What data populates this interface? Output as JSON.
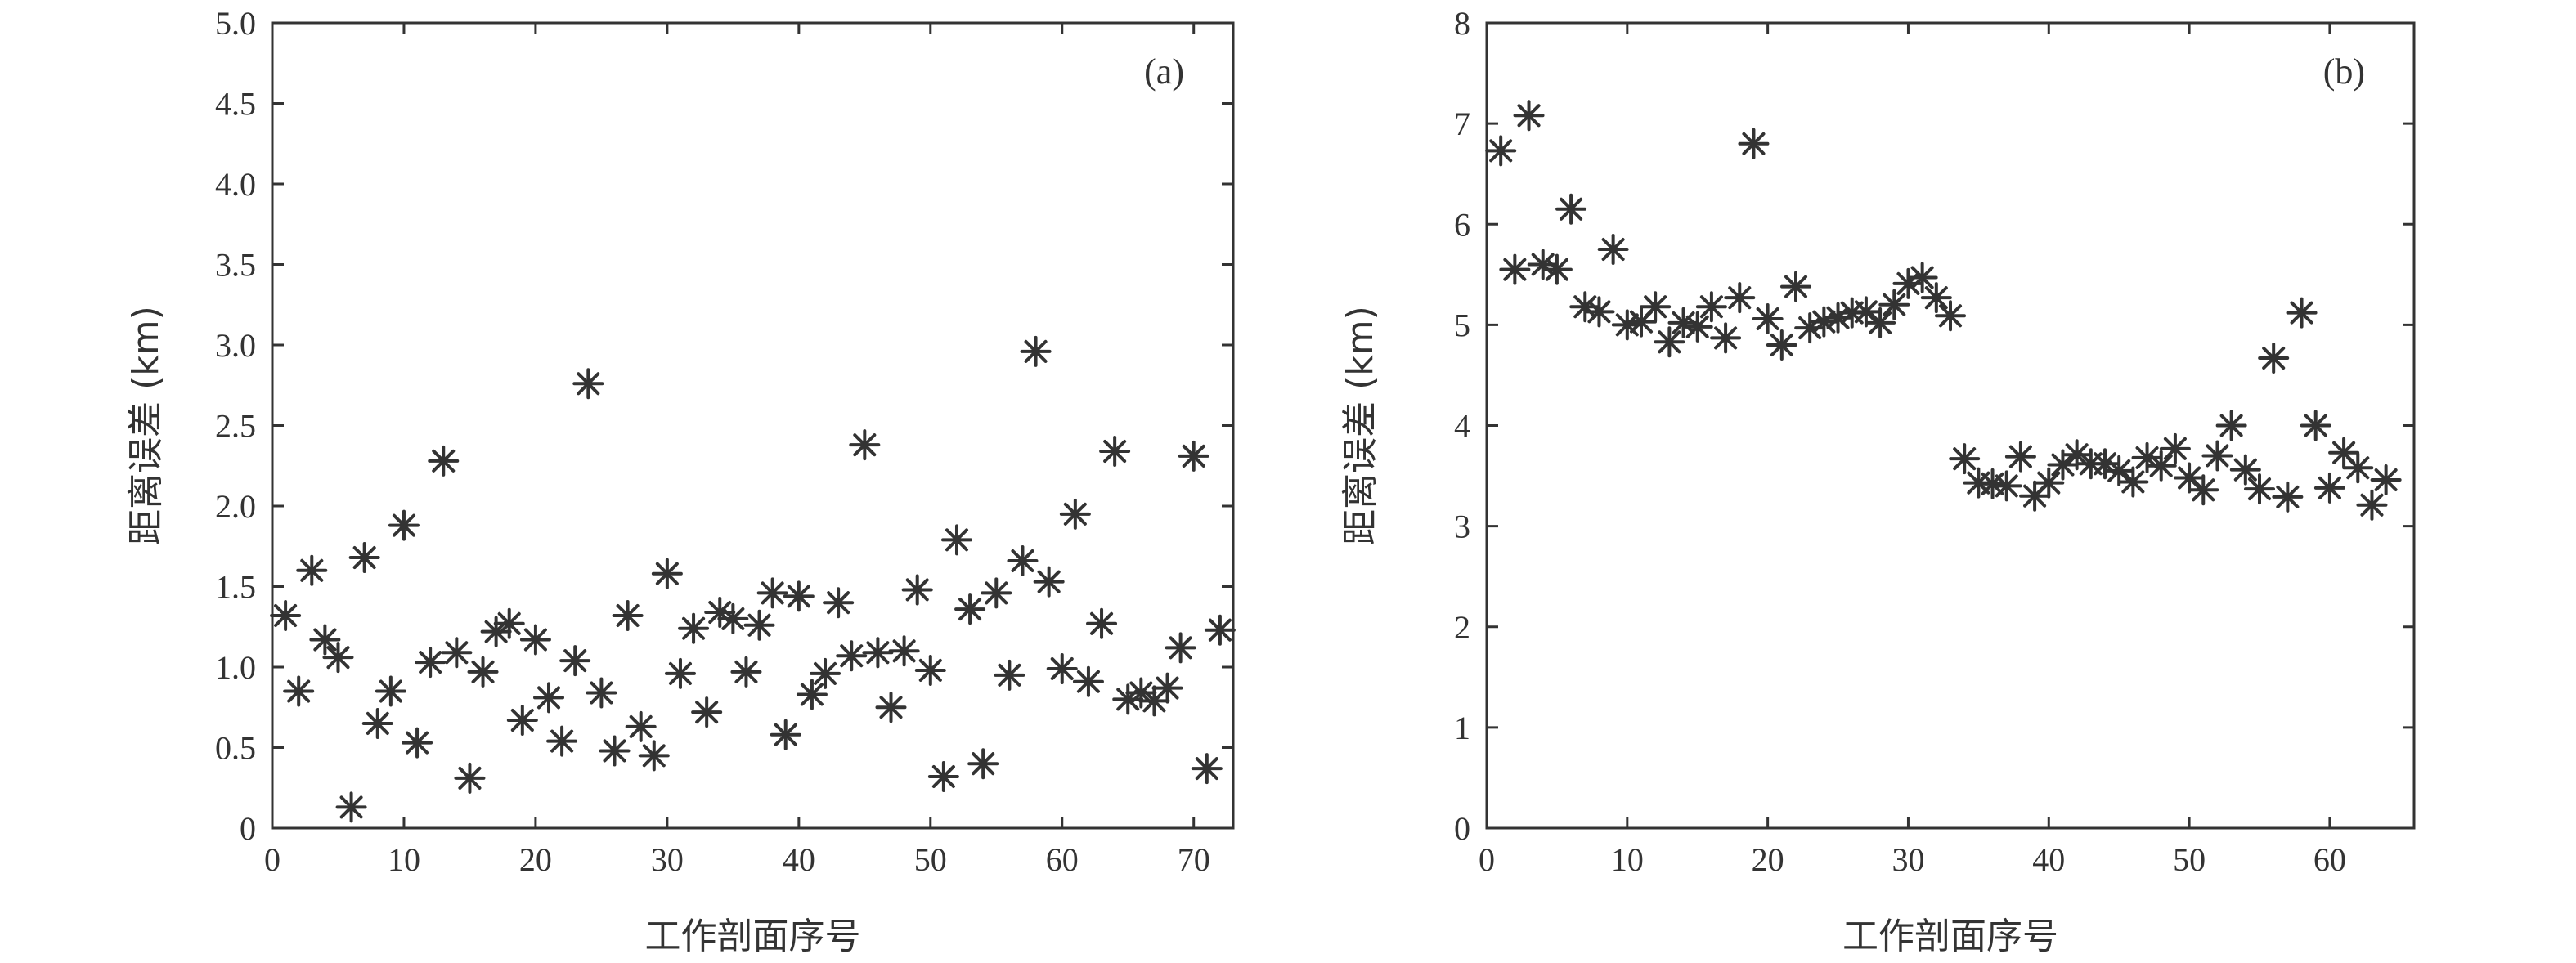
{
  "chart_data": [
    {
      "type": "scatter",
      "panel_label": "(a)",
      "xlabel": "工作剖面序号",
      "ylabel": "距离误差 (km)",
      "xlim": [
        0,
        73
      ],
      "ylim": [
        0,
        5.0
      ],
      "xticks": [
        "0",
        "10",
        "20",
        "30",
        "40",
        "50",
        "60",
        "70"
      ],
      "yticks": [
        "0",
        "0.5",
        "1.0",
        "1.5",
        "2.0",
        "2.5",
        "3.0",
        "3.5",
        "4.0",
        "4.5",
        "5.0"
      ],
      "marker": "asterisk",
      "color": "#333333",
      "grid": false,
      "x": [
        1,
        2,
        3,
        4,
        5,
        6,
        7,
        8,
        9,
        10,
        11,
        12,
        13,
        14,
        15,
        16,
        17,
        18,
        19,
        20,
        21,
        22,
        23,
        24,
        25,
        26,
        27,
        28,
        29,
        30,
        31,
        32,
        33,
        34,
        35,
        36,
        37,
        38,
        39,
        40,
        41,
        42,
        43,
        44,
        45,
        46,
        47,
        48,
        49,
        50,
        51,
        52,
        53,
        54,
        55,
        56,
        57,
        58,
        59,
        60,
        61,
        62,
        63,
        64,
        65,
        66,
        67,
        68,
        69,
        70,
        71,
        72
      ],
      "y": [
        1.32,
        0.85,
        1.6,
        1.17,
        1.06,
        0.13,
        1.68,
        0.65,
        0.85,
        1.88,
        0.53,
        1.03,
        2.28,
        1.09,
        0.31,
        0.97,
        1.22,
        1.27,
        0.67,
        1.17,
        0.81,
        0.54,
        1.04,
        2.76,
        0.84,
        0.48,
        1.32,
        0.63,
        0.45,
        1.58,
        0.96,
        1.24,
        0.72,
        1.34,
        1.3,
        0.97,
        1.26,
        1.46,
        0.58,
        1.44,
        0.83,
        0.96,
        1.4,
        1.07,
        2.38,
        1.09,
        0.75,
        1.1,
        1.48,
        0.98,
        0.32,
        1.79,
        1.36,
        0.4,
        1.46,
        0.95,
        1.66,
        2.96,
        1.53,
        0.99,
        1.95,
        0.91,
        1.27,
        2.34,
        0.8,
        0.84,
        0.79,
        0.87,
        1.12,
        2.31,
        0.37,
        1.23
      ]
    },
    {
      "type": "scatter",
      "panel_label": "(b)",
      "xlabel": "工作剖面序号",
      "ylabel": "距离误差 (km)",
      "xlim": [
        0,
        66
      ],
      "ylim": [
        0,
        8
      ],
      "xticks": [
        "0",
        "10",
        "20",
        "30",
        "40",
        "50",
        "60"
      ],
      "yticks": [
        "0",
        "1",
        "2",
        "3",
        "4",
        "5",
        "6",
        "7",
        "8"
      ],
      "marker": "asterisk",
      "color": "#333333",
      "grid": false,
      "x": [
        1,
        2,
        3,
        4,
        5,
        6,
        7,
        8,
        9,
        10,
        11,
        12,
        13,
        14,
        15,
        16,
        17,
        18,
        19,
        20,
        21,
        22,
        23,
        24,
        25,
        26,
        27,
        28,
        29,
        30,
        31,
        32,
        33,
        34,
        35,
        36,
        37,
        38,
        39,
        40,
        41,
        42,
        43,
        44,
        45,
        46,
        47,
        48,
        49,
        50,
        51,
        52,
        53,
        54,
        55,
        56,
        57,
        58,
        59,
        60,
        61,
        62,
        63,
        64
      ],
      "y": [
        6.73,
        5.55,
        7.08,
        5.6,
        5.55,
        6.15,
        5.18,
        5.13,
        5.75,
        5.0,
        5.03,
        5.18,
        4.83,
        5.02,
        4.98,
        5.18,
        4.87,
        5.27,
        6.8,
        5.06,
        4.8,
        5.38,
        4.97,
        5.03,
        5.07,
        5.12,
        5.13,
        5.02,
        5.2,
        5.41,
        5.47,
        5.27,
        5.09,
        3.67,
        3.43,
        3.42,
        3.4,
        3.69,
        3.3,
        3.43,
        3.61,
        3.71,
        3.62,
        3.62,
        3.55,
        3.44,
        3.68,
        3.6,
        3.77,
        3.48,
        3.36,
        3.7,
        4.0,
        3.56,
        3.37,
        4.67,
        3.29,
        5.12,
        4.0,
        3.38,
        3.73,
        3.58,
        3.21,
        3.46
      ]
    }
  ]
}
